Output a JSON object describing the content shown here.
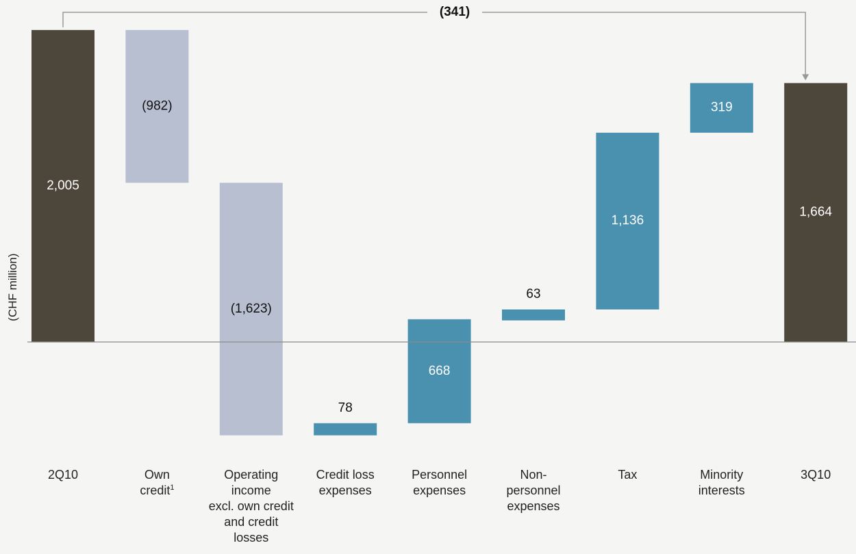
{
  "chart_data": {
    "type": "bar",
    "subtype": "waterfall",
    "ylabel": "(CHF million)",
    "start_value": 2005,
    "end_value": 1664,
    "total_change": {
      "label": "(341)",
      "value": -341
    },
    "steps": [
      {
        "category": "2Q10",
        "label_lines": [
          "2Q10"
        ],
        "kind": "total",
        "value": 2005,
        "value_label": "2,005"
      },
      {
        "category": "Own credit1",
        "label_lines": [
          "Own",
          "credit"
        ],
        "footnote": "1",
        "kind": "decrease",
        "value": -982,
        "value_label": "(982)"
      },
      {
        "category": "Operating income excl. own credit and credit losses",
        "label_lines": [
          "Operating",
          "income",
          "excl. own credit",
          "and credit",
          "losses"
        ],
        "kind": "decrease",
        "value": -1623,
        "value_label": "(1,623)"
      },
      {
        "category": "Credit loss expenses",
        "label_lines": [
          "Credit loss",
          "expenses"
        ],
        "kind": "increase",
        "value": 78,
        "value_label": "78"
      },
      {
        "category": "Personnel expenses",
        "label_lines": [
          "Personnel",
          "expenses"
        ],
        "kind": "increase",
        "value": 668,
        "value_label": "668"
      },
      {
        "category": "Non-personnel expenses",
        "label_lines": [
          "Non-",
          "personnel",
          "expenses"
        ],
        "kind": "increase",
        "value": 63,
        "value_label": "63"
      },
      {
        "category": "Tax",
        "label_lines": [
          "Tax"
        ],
        "kind": "increase",
        "value": 1136,
        "value_label": "1,136"
      },
      {
        "category": "Minority interests",
        "label_lines": [
          "Minority",
          "interests"
        ],
        "kind": "increase",
        "value": 319,
        "value_label": "319"
      },
      {
        "category": "3Q10",
        "label_lines": [
          "3Q10"
        ],
        "kind": "total",
        "value": 1664,
        "value_label": "1,664"
      }
    ],
    "colors": {
      "total": "#4d463b",
      "decrease": "#b8bfd0",
      "increase": "#4a91b0",
      "axis": "#8a8a8a",
      "connector": "#999999"
    },
    "legend": "none",
    "grid": false
  }
}
